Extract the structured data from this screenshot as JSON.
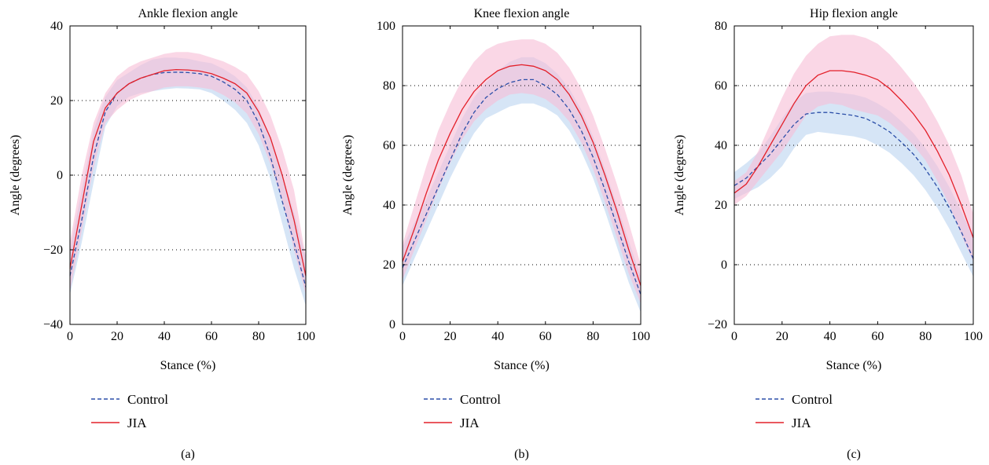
{
  "colors": {
    "control": "#2b4ea8",
    "jia": "#e3202a",
    "control_band": "#cfe0f5",
    "jia_band": "#f7bfd6"
  },
  "chart_data": [
    {
      "type": "line",
      "title": "Ankle flexion angle",
      "xlabel": "Stance (%)",
      "ylabel": "Angle (degrees)",
      "panel_label": "(a)",
      "xlim": [
        0,
        100
      ],
      "ylim": [
        -40,
        40
      ],
      "xticks": [
        0,
        20,
        40,
        60,
        80,
        100
      ],
      "yticks": [
        -40,
        -20,
        0,
        20,
        40
      ],
      "ytick_labels": [
        "−40",
        "−20",
        "0",
        "20",
        "40"
      ],
      "grid": "dotted horizontal at -20, 0, 20",
      "legend": "below-left",
      "series": [
        {
          "name": "Control",
          "style": "dashed",
          "x": [
            0,
            5,
            10,
            15,
            20,
            25,
            30,
            35,
            40,
            45,
            50,
            55,
            60,
            65,
            70,
            75,
            80,
            85,
            90,
            95,
            100
          ],
          "y": [
            -27,
            -12,
            5,
            17,
            22,
            24.5,
            26,
            27,
            27.5,
            27.6,
            27.5,
            27.2,
            26.5,
            25,
            23,
            20,
            14,
            5,
            -7,
            -18,
            -30
          ],
          "upper": [
            -20,
            -4,
            12,
            21,
            25.5,
            27.5,
            29.5,
            31,
            31.5,
            31.5,
            31.2,
            30.5,
            30,
            28.5,
            26.5,
            23.5,
            18,
            10,
            0,
            -10,
            -22
          ],
          "lower": [
            -32,
            -18,
            -2,
            13,
            18.5,
            21,
            22,
            22.5,
            23,
            23.3,
            23.2,
            23,
            22,
            20,
            17.5,
            14,
            8,
            -1,
            -13,
            -25,
            -35
          ]
        },
        {
          "name": "JIA",
          "style": "solid",
          "x": [
            0,
            5,
            10,
            15,
            20,
            25,
            30,
            35,
            40,
            45,
            50,
            55,
            60,
            65,
            70,
            75,
            80,
            85,
            90,
            95,
            100
          ],
          "y": [
            -25,
            -8,
            9,
            18,
            22,
            24.5,
            26,
            27,
            28,
            28.3,
            28.2,
            27.9,
            27.2,
            26,
            24.5,
            22,
            17,
            10,
            0,
            -12,
            -27
          ],
          "upper": [
            -18,
            0,
            14,
            22,
            26.5,
            29,
            30.5,
            31.5,
            32.5,
            33,
            33,
            32.5,
            31.5,
            30.5,
            29,
            27,
            22.5,
            16,
            7,
            -4,
            -22
          ],
          "lower": [
            -31,
            -15,
            2,
            14,
            17.5,
            20,
            21.5,
            22.5,
            23.5,
            23.8,
            23.8,
            23.5,
            23,
            21.5,
            19.5,
            16.5,
            11,
            3,
            -7,
            -20,
            -32
          ]
        }
      ]
    },
    {
      "type": "line",
      "title": "Knee flexion angle",
      "xlabel": "Stance (%)",
      "ylabel": "Angle (degrees)",
      "panel_label": "(b)",
      "xlim": [
        0,
        100
      ],
      "ylim": [
        0,
        100
      ],
      "xticks": [
        0,
        20,
        40,
        60,
        80,
        100
      ],
      "yticks": [
        0,
        20,
        40,
        60,
        80,
        100
      ],
      "ytick_labels": [
        "0",
        "20",
        "40",
        "60",
        "80",
        "100"
      ],
      "grid": "dotted horizontal at 20, 40, 60, 80",
      "legend": "below-left",
      "series": [
        {
          "name": "Control",
          "style": "dashed",
          "x": [
            0,
            5,
            10,
            15,
            20,
            25,
            30,
            35,
            40,
            45,
            50,
            55,
            60,
            65,
            70,
            75,
            80,
            85,
            90,
            95,
            100
          ],
          "y": [
            19,
            28,
            37,
            46,
            55,
            64,
            71,
            76,
            79,
            81,
            82,
            82,
            80,
            77,
            72,
            65,
            56,
            45,
            33,
            21,
            10
          ],
          "upper": [
            26,
            34,
            42,
            51,
            60,
            69,
            76,
            81,
            85,
            88,
            89.5,
            89.5,
            87.5,
            84,
            79,
            72,
            63,
            52,
            40,
            28,
            16
          ],
          "lower": [
            13,
            22,
            31,
            40,
            49,
            57,
            64,
            69,
            71,
            73,
            74,
            74,
            72.5,
            70,
            65,
            58,
            49,
            38,
            26,
            14,
            4
          ]
        },
        {
          "name": "JIA",
          "style": "solid",
          "x": [
            0,
            5,
            10,
            15,
            20,
            25,
            30,
            35,
            40,
            45,
            50,
            55,
            60,
            65,
            70,
            75,
            80,
            85,
            90,
            95,
            100
          ],
          "y": [
            21,
            32,
            44,
            55,
            64,
            72,
            78,
            82,
            85,
            86.5,
            87,
            86.5,
            85,
            82,
            77,
            70,
            61,
            50,
            38,
            25,
            13
          ],
          "upper": [
            27,
            40,
            53,
            65,
            74,
            82,
            88,
            92,
            94,
            95,
            95.5,
            95.5,
            94,
            91,
            86,
            79,
            70,
            59,
            47,
            34,
            20
          ],
          "lower": [
            15,
            25,
            35,
            45,
            54,
            62,
            68,
            72,
            75,
            77,
            77.5,
            77,
            75.5,
            72.5,
            68,
            61,
            52,
            41,
            29,
            17,
            7
          ]
        }
      ]
    },
    {
      "type": "line",
      "title": "Hip flexion angle",
      "xlabel": "Stance (%)",
      "ylabel": "Angle (degrees)",
      "panel_label": "(c)",
      "xlim": [
        0,
        100
      ],
      "ylim": [
        -20,
        80
      ],
      "xticks": [
        0,
        20,
        40,
        60,
        80,
        100
      ],
      "yticks": [
        -20,
        0,
        20,
        40,
        60,
        80
      ],
      "ytick_labels": [
        "−20",
        "0",
        "20",
        "40",
        "60",
        "80"
      ],
      "grid": "dotted horizontal at 0, 20, 40, 60",
      "legend": "below-left",
      "series": [
        {
          "name": "Control",
          "style": "dashed",
          "x": [
            0,
            5,
            10,
            15,
            20,
            25,
            30,
            35,
            40,
            45,
            50,
            55,
            60,
            65,
            70,
            75,
            80,
            85,
            90,
            95,
            100
          ],
          "y": [
            26.5,
            29,
            33,
            37,
            42,
            47,
            50.5,
            51,
            51,
            50.5,
            50,
            49,
            47,
            44.5,
            41,
            37,
            32,
            26,
            19,
            11,
            2
          ],
          "upper": [
            31,
            34,
            37.5,
            43,
            49,
            54.5,
            57.5,
            58,
            58,
            57.5,
            57,
            56,
            54,
            51.5,
            48,
            44,
            39,
            33,
            26,
            18,
            9
          ],
          "lower": [
            22,
            24,
            26,
            29,
            33,
            39,
            43.5,
            44.5,
            44,
            43.5,
            43,
            42,
            40,
            37.5,
            34,
            30,
            25,
            19,
            12,
            4,
            -4
          ]
        },
        {
          "name": "JIA",
          "style": "solid",
          "x": [
            0,
            5,
            10,
            15,
            20,
            25,
            30,
            35,
            40,
            45,
            50,
            55,
            60,
            65,
            70,
            75,
            80,
            85,
            90,
            95,
            100
          ],
          "y": [
            24,
            27,
            33,
            40,
            47,
            54,
            60,
            63.5,
            65,
            65,
            64.5,
            63.5,
            62,
            59,
            55,
            50.5,
            45,
            38,
            30,
            20,
            9
          ],
          "upper": [
            28,
            31,
            38,
            47,
            56,
            64,
            70,
            74,
            76.5,
            77,
            77,
            76,
            74,
            70.5,
            66,
            61,
            55,
            48,
            40,
            30,
            17
          ],
          "lower": [
            20,
            23,
            28,
            33,
            38,
            44,
            50,
            53,
            54,
            53.5,
            52,
            51,
            50,
            47.5,
            44,
            40,
            35,
            28,
            20,
            10,
            1
          ]
        }
      ]
    }
  ]
}
